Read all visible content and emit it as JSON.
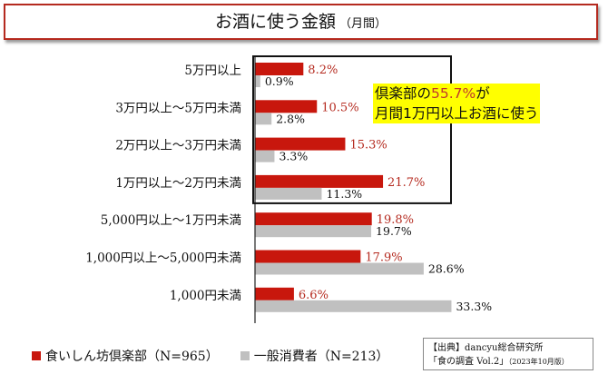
{
  "title": "お酒に使う金額",
  "title_sub": "（月間）",
  "callout": {
    "line1_pre": "倶楽部の",
    "line1_value": "55.7%",
    "line1_post": "が",
    "line2": "月間1万円以上お酒に使う"
  },
  "legend": [
    {
      "label": "食いしん坊倶楽部（N=965）",
      "color": "#c8170d"
    },
    {
      "label": "一般消費者（N=213）",
      "color": "#c0c0c0"
    }
  ],
  "source": {
    "line1": "【出典】dancyu総合研究所",
    "line2": "「食の調査 Vol.2」",
    "line2_small": "（2023年10月版）"
  },
  "chart_data": {
    "type": "bar",
    "orientation": "horizontal",
    "title": "お酒に使う金額（月間）",
    "categories": [
      "5万円以上",
      "3万円以上〜5万円未満",
      "2万円以上〜3万円未満",
      "1万円以上〜2万円未満",
      "5,000円以上〜1万円未満",
      "1,000円以上〜5,000円未満",
      "1,000円未満"
    ],
    "series": [
      {
        "name": "食いしん坊倶楽部（N=965）",
        "color": "#c8170d",
        "label_color": "#b52a1f",
        "values": [
          8.2,
          10.5,
          15.3,
          21.7,
          19.8,
          17.9,
          6.6
        ]
      },
      {
        "name": "一般消費者（N=213）",
        "color": "#c0c0c0",
        "label_color": "#111111",
        "values": [
          0.9,
          2.8,
          3.3,
          11.3,
          19.7,
          28.6,
          33.3
        ]
      }
    ],
    "value_suffix": "%",
    "highlight_box_categories": 4,
    "grid": false,
    "legend_position": "bottom-left"
  }
}
